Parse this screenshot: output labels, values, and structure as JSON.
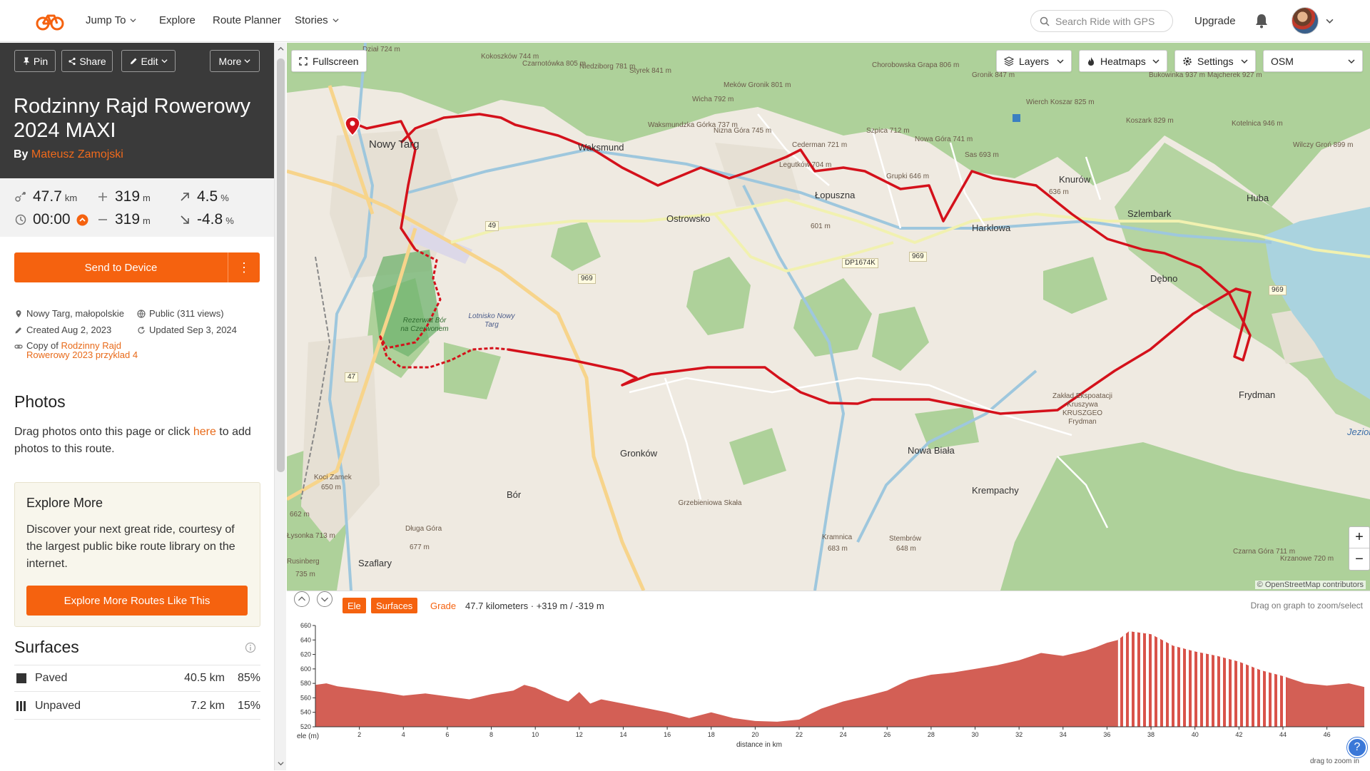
{
  "nav": {
    "items": [
      {
        "label": "Jump To",
        "dropdown": true
      },
      {
        "label": "Explore",
        "dropdown": false
      },
      {
        "label": "Route Planner",
        "dropdown": false
      },
      {
        "label": "Stories",
        "dropdown": true
      }
    ],
    "search_placeholder": "Search Ride with GPS",
    "upgrade": "Upgrade"
  },
  "colors": {
    "accent": "#f5620f",
    "route": "#d4111b",
    "hero_bg": "#3a3a3a"
  },
  "route": {
    "actions": {
      "pin": "Pin",
      "share": "Share",
      "edit": "Edit",
      "more": "More"
    },
    "title": "Rodzinny Rajd Rowerowy 2024 MAXI",
    "by": "By",
    "author": "Mateusz Zamojski",
    "stats": {
      "distance": "47.7",
      "distance_unit": "km",
      "ascent": "319",
      "ascent_unit": "m",
      "grade_up": "4.5",
      "grade_up_unit": "%",
      "time": "00:00",
      "descent": "319",
      "descent_unit": "m",
      "grade_down": "-4.8",
      "grade_down_unit": "%"
    },
    "send_to_device": "Send to Device",
    "more_icon": "⋮",
    "meta": {
      "location": "Nowy Targ, małopolskie",
      "visibility": "Public (311 views)",
      "created": "Created Aug 2, 2023",
      "updated": "Updated Sep 3, 2024",
      "copy_of_prefix": "Copy of",
      "copy_of_link": "Rodzinny Rajd Rowerowy 2023 przyklad 4"
    }
  },
  "photos": {
    "heading": "Photos",
    "text_before": "Drag photos onto this page or click ",
    "link": "here",
    "text_after": " to add photos to this route."
  },
  "explore": {
    "heading": "Explore More",
    "text": "Discover your next great ride, courtesy of the largest public bike route library on the internet.",
    "button": "Explore More Routes Like This"
  },
  "surfaces": {
    "heading": "Surfaces",
    "rows": [
      {
        "name": "Paved",
        "km": "40.5 km",
        "pct": "85%"
      },
      {
        "name": "Unpaved",
        "km": "7.2 km",
        "pct": "15%"
      }
    ]
  },
  "map": {
    "fullscreen": "Fullscreen",
    "layers": "Layers",
    "heatmaps": "Heatmaps",
    "settings": "Settings",
    "basemap": "OSM",
    "zoom_in": "+",
    "zoom_out": "−",
    "attribution": "© OpenStreetMap contributors",
    "towns": [
      "Nowy Targ",
      "Waksmund",
      "Ostrowsko",
      "Łopuszna",
      "Harklowa",
      "Knurów",
      "Szlembark",
      "Dębno",
      "Huba",
      "Frydman",
      "Nowa Biała",
      "Krempachy",
      "Gronków",
      "Bór",
      "Szaflary",
      "Grzebieniowa Skała",
      "Koci Zamek",
      "Długa Góra",
      "Kramnica",
      "Stembrów",
      "Rusinberg",
      "Lotnisko Nowy Targ",
      "Rezerwat Bór na Czerwonem",
      "Zakład Ekspoatacji Kruszywa KRUSZGEO Frydman",
      "Jezior"
    ],
    "roads": [
      "49",
      "969",
      "969",
      "969",
      "47",
      "DP1674K"
    ],
    "peaks": [
      "Kokoszków 744 m",
      "Czarnotówka 805 m",
      "Niedziborg 781 m",
      "Styrek 841 m",
      "Meków Gronik 801 m",
      "Waksmundzka Górka 737 m",
      "Wicha 792 m",
      "Nizna Góra 745 m",
      "Cederman 721 m",
      "Legutków 704 m",
      "Szpica 712 m",
      "Chorobowska Grapa 806 m",
      "Nowa Góra 741 m",
      "Grupki 646 m",
      "Sas 693 m",
      "Wierch Koszar 825 m",
      "Koszark 829 m",
      "Bukowinka 937 m",
      "Majcherek 927 m",
      "Kotelnica 946 m",
      "Wilczy Groń 899 m",
      "Gronik 847 m",
      "Dział 724 m",
      "Czarna Góra 711 m",
      "Krzanowe 720 m",
      "662 m",
      "Łysonka 713 m",
      "735 m",
      "650 m",
      "677 m",
      "683 m",
      "648 m",
      "601 m",
      "636 m"
    ]
  },
  "elevation": {
    "tab_ele": "Ele",
    "tab_surfaces": "Surfaces",
    "tab_grade": "Grade",
    "summary": "47.7 kilometers · +319 m / -319 m",
    "hint": "Drag on graph to zoom/select",
    "drag_to_zoom": "drag to zoom in",
    "help": "?"
  },
  "chart_data": {
    "type": "area",
    "xlabel": "distance in km",
    "ylabel": "ele (m)",
    "xlim": [
      0,
      47.7
    ],
    "ylim": [
      520,
      660
    ],
    "x_ticks": [
      2,
      4,
      6,
      8,
      10,
      12,
      14,
      16,
      18,
      20,
      22,
      24,
      26,
      28,
      30,
      32,
      34,
      36,
      38,
      40,
      42,
      44,
      46
    ],
    "y_ticks": [
      520,
      540,
      560,
      580,
      600,
      620,
      640,
      660
    ],
    "x": [
      0,
      0.5,
      1,
      2,
      3,
      4,
      5,
      6,
      7,
      8,
      9,
      9.5,
      10,
      11,
      11.5,
      12,
      12.5,
      13,
      14,
      15,
      16,
      17,
      18,
      19,
      20,
      21,
      22,
      23,
      24,
      25,
      26,
      27,
      28,
      29,
      30,
      31,
      32,
      33,
      34,
      35,
      35.5,
      36,
      36.5,
      37,
      37.5,
      38,
      38.5,
      39,
      40,
      41,
      42,
      43,
      44,
      45,
      46,
      47,
      47.7
    ],
    "y": [
      578,
      580,
      576,
      572,
      568,
      563,
      566,
      562,
      558,
      565,
      570,
      578,
      574,
      560,
      555,
      568,
      552,
      558,
      552,
      546,
      540,
      532,
      540,
      532,
      528,
      527,
      530,
      545,
      555,
      562,
      570,
      585,
      592,
      595,
      600,
      605,
      612,
      622,
      618,
      625,
      630,
      636,
      640,
      652,
      650,
      648,
      640,
      632,
      624,
      618,
      610,
      598,
      590,
      580,
      577,
      580,
      575
    ],
    "unpaved_ranges": [
      [
        36.5,
        44.2
      ]
    ]
  }
}
